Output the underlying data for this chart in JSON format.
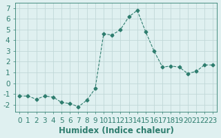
{
  "x": [
    0,
    1,
    2,
    3,
    4,
    5,
    6,
    7,
    8,
    9,
    10,
    11,
    12,
    13,
    14,
    15,
    16,
    17,
    18,
    19,
    20,
    21,
    22,
    23
  ],
  "y": [
    -1.2,
    -1.2,
    -1.5,
    -1.2,
    -1.3,
    -1.8,
    -1.9,
    -2.2,
    -1.6,
    -0.5,
    4.6,
    4.5,
    5.0,
    6.2,
    6.8,
    4.8,
    3.0,
    1.5,
    1.6,
    1.5,
    0.9,
    1.1,
    1.7,
    1.7
  ],
  "xlabel": "Humidex (Indice chaleur)",
  "line_color": "#2e7d6e",
  "marker": "D",
  "marker_size": 2.5,
  "line_width": 0.8,
  "linestyle": "--",
  "bg_color": "#dff0f0",
  "grid_color": "#c0d8d8",
  "tick_color": "#2e7d6e",
  "label_color": "#2e7d6e",
  "xlim": [
    -0.5,
    23.5
  ],
  "ylim": [
    -2.7,
    7.5
  ],
  "yticks": [
    -2,
    -1,
    0,
    1,
    2,
    3,
    4,
    5,
    6,
    7
  ],
  "xticks": [
    0,
    1,
    2,
    3,
    4,
    5,
    6,
    7,
    8,
    9,
    10,
    11,
    12,
    13,
    14,
    15,
    16,
    17,
    18,
    19,
    20,
    21,
    22,
    23
  ],
  "font_size": 7.5,
  "xlabel_font_size": 8.5
}
